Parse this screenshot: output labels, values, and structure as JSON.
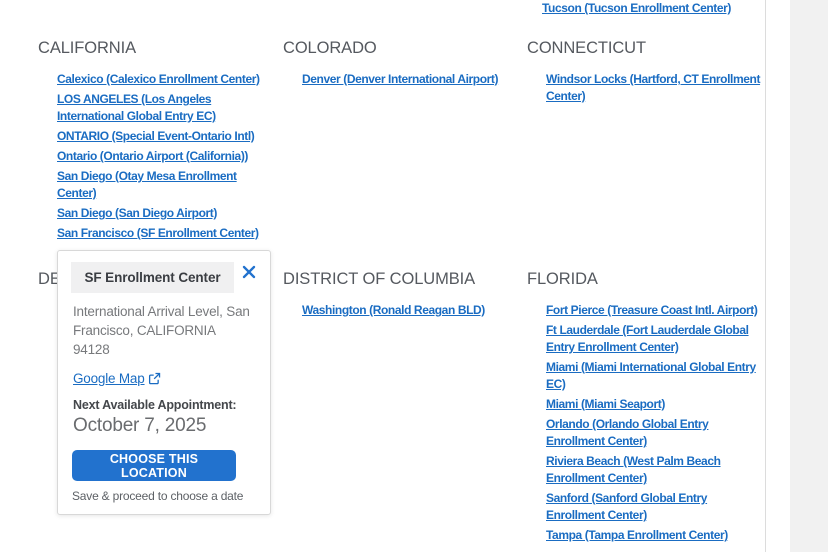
{
  "top_link": {
    "label": "Tucson (Tucson Enrollment Center)"
  },
  "sections": [
    {
      "state": "CALIFORNIA",
      "links": [
        "Calexico (Calexico Enrollment Center)",
        "LOS ANGELES (Los Angeles\nInternational Global Entry EC)",
        "ONTARIO (Special Event-Ontario Intl)",
        "Ontario (Ontario Airport (California))",
        "San Diego (Otay Mesa Enrollment\nCenter)",
        "San Diego (San Diego Airport)",
        "San Francisco (SF Enrollment Center)"
      ]
    },
    {
      "state": "COLORADO",
      "links": [
        "Denver (Denver International Airport)"
      ]
    },
    {
      "state": "CONNECTICUT",
      "links": [
        "Windsor Locks (Hartford, CT Enrollment\nCenter)"
      ]
    },
    {
      "state": "DE",
      "links": []
    },
    {
      "state": "DISTRICT OF COLUMBIA",
      "links": [
        "Washington (Ronald Reagan BLD)"
      ]
    },
    {
      "state": "FLORIDA",
      "links": [
        "Fort Pierce (Treasure Coast Intl. Airport)",
        "Ft Lauderdale (Fort Lauderdale Global\nEntry Enrollment Center)",
        "Miami (Miami International Global Entry\nEC)",
        "Miami (Miami Seaport)",
        "Orlando (Orlando Global Entry\nEnrollment Center)",
        "Riviera Beach (West Palm Beach\nEnrollment Center)",
        "Sanford (Sanford Global Entry\nEnrollment Center)",
        "Tampa (Tampa Enrollment Center)"
      ]
    }
  ],
  "popup": {
    "title": "SF Enrollment Center",
    "address": "International Arrival Level, San\nFrancisco, CALIFORNIA 94128",
    "map_link_label": "Google Map",
    "next_appointment_label": "Next Available Appointment:",
    "next_appointment_date": "October 7, 2025",
    "choose_button_label": "CHOOSE THIS LOCATION",
    "footnote": "Save & proceed to choose a date"
  },
  "colors": {
    "link_blue": "#1a6cc2",
    "heading_gray": "#55595f",
    "button_blue": "#2272ce",
    "close_icon_blue": "#2272ce",
    "popup_header_bg": "#f0f0f1",
    "right_gutter_bg": "#f1f1f1"
  }
}
